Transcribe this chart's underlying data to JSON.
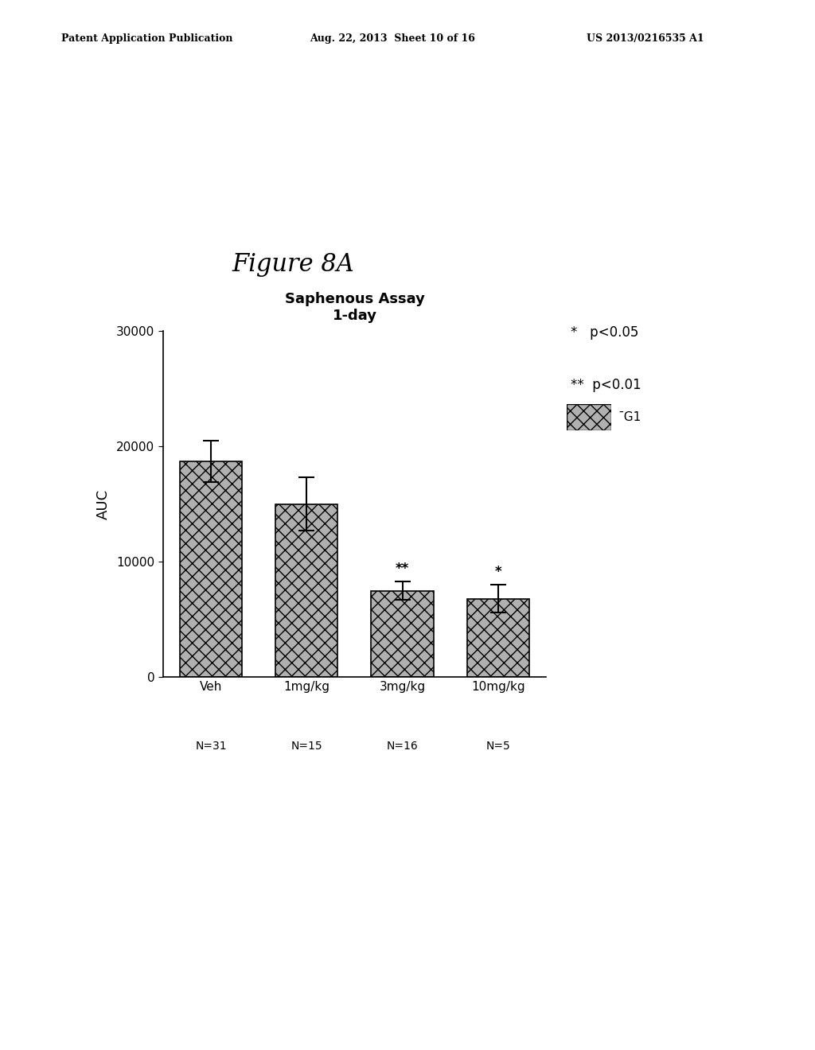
{
  "title_line1": "Saphenous Assay",
  "title_line2": "1-day",
  "ylabel": "AUC",
  "categories": [
    "Veh",
    "1mg/kg",
    "3mg/kg",
    "10mg/kg"
  ],
  "sample_sizes": [
    "N=31",
    "N=15",
    "N=16",
    "N=5"
  ],
  "values": [
    18700,
    15000,
    7500,
    6800
  ],
  "errors": [
    1800,
    2300,
    800,
    1200
  ],
  "annotations": [
    "",
    "",
    "**",
    "*"
  ],
  "ylim": [
    0,
    30000
  ],
  "yticks": [
    0,
    10000,
    20000,
    30000
  ],
  "bar_color": "#b0b0b0",
  "bar_edgecolor": "#000000",
  "bar_hatch": "xx",
  "legend_label": "¯G1",
  "legend_patch_color": "#b0b0b0",
  "legend_patch_hatch": "xx",
  "stat_text1": "*   p<0.05",
  "stat_text2": "**  p<0.01",
  "header_left": "Patent Application Publication",
  "header_mid": "Aug. 22, 2013  Sheet 10 of 16",
  "header_right": "US 2013/0216535 A1",
  "figure_label": "Figure 8A",
  "background_color": "#ffffff",
  "fig_width": 10.24,
  "fig_height": 13.2,
  "dpi": 100
}
